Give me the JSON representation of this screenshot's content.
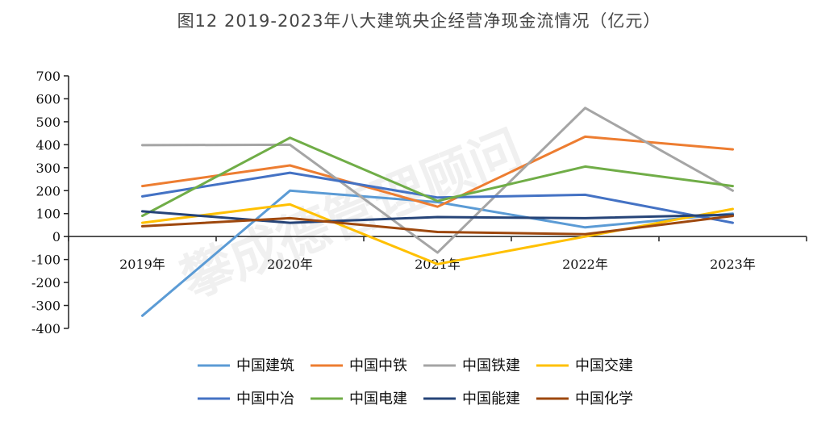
{
  "chart_data": {
    "type": "line",
    "title": "图12 2019-2023年八大建筑央企经营净现金流情况（亿元）",
    "watermark": "攀成德管理顾问",
    "categories": [
      "2019年",
      "2020年",
      "2021年",
      "2022年",
      "2023年"
    ],
    "ylim": [
      -400,
      700
    ],
    "yticks": [
      700,
      600,
      500,
      400,
      300,
      200,
      100,
      0,
      -100,
      -200,
      -300,
      -400
    ],
    "legend_position": "bottom",
    "series": [
      {
        "name": "中国建筑",
        "color": "#5B9BD5",
        "values": [
          -345,
          200,
          150,
          40,
          100
        ]
      },
      {
        "name": "中国中铁",
        "color": "#ED7D31",
        "values": [
          220,
          310,
          130,
          435,
          380
        ]
      },
      {
        "name": "中国铁建",
        "color": "#A5A5A5",
        "values": [
          398,
          400,
          -70,
          560,
          200
        ]
      },
      {
        "name": "中国交建",
        "color": "#FFC000",
        "values": [
          60,
          140,
          -120,
          0,
          120
        ]
      },
      {
        "name": "中国中冶",
        "color": "#4472C4",
        "values": [
          175,
          278,
          170,
          182,
          60
        ]
      },
      {
        "name": "中国电建",
        "color": "#70AD47",
        "values": [
          90,
          430,
          155,
          305,
          220
        ]
      },
      {
        "name": "中国能建",
        "color": "#264478",
        "values": [
          110,
          60,
          85,
          80,
          95
        ]
      },
      {
        "name": "中国化学",
        "color": "#9E480E",
        "values": [
          45,
          80,
          20,
          10,
          90
        ]
      }
    ]
  }
}
